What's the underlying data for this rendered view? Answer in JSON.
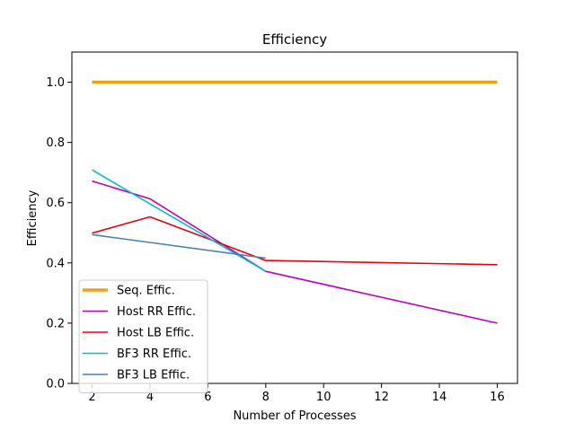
{
  "chart_data": {
    "type": "line",
    "title": "Efficiency",
    "xlabel": "Number of Processes",
    "ylabel": "Efficiency",
    "xlim": [
      1.3,
      16.7
    ],
    "ylim": [
      0.0,
      1.1
    ],
    "xticks": [
      2,
      4,
      6,
      8,
      10,
      12,
      14,
      16
    ],
    "yticks": [
      0.0,
      0.2,
      0.4,
      0.6,
      0.8,
      1.0
    ],
    "ytick_labels": [
      "0.0",
      "0.2",
      "0.4",
      "0.6",
      "0.8",
      "1.0"
    ],
    "grid": false,
    "legend_position": "lower-left",
    "series": [
      {
        "name": "Seq. Effic.",
        "color": "#f0a30a",
        "width": "thick",
        "x": [
          2,
          4,
          8,
          16
        ],
        "y": [
          1.0,
          1.0,
          1.0,
          1.0
        ]
      },
      {
        "name": "Host RR Effic.",
        "color": "#bf00bf",
        "width": "normal",
        "x": [
          2,
          4,
          8,
          16
        ],
        "y": [
          0.672,
          0.613,
          0.372,
          0.2
        ]
      },
      {
        "name": "Host LB Effic.",
        "color": "#e8000b",
        "width": "normal",
        "x": [
          2,
          4,
          8,
          16
        ],
        "y": [
          0.499,
          0.553,
          0.408,
          0.394
        ]
      },
      {
        "name": "BF3 RR Effic.",
        "color": "#00bfbf",
        "width": "normal",
        "x": [
          2,
          4,
          8
        ],
        "y": [
          0.709,
          0.596,
          0.372
        ]
      },
      {
        "name": "BF3 LB Effic.",
        "color": "#4682b4",
        "width": "normal",
        "x": [
          2,
          8
        ],
        "y": [
          0.494,
          0.416
        ]
      }
    ]
  }
}
